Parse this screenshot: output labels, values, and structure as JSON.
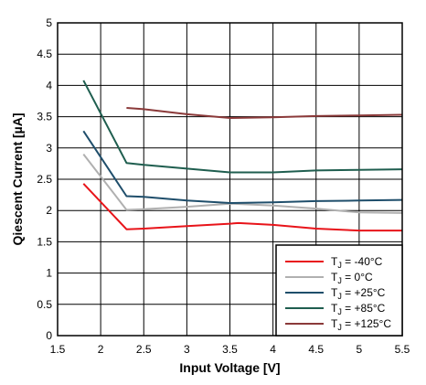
{
  "chart_data": {
    "type": "line",
    "xlabel": "Input Voltage [V]",
    "ylabel": "Qiescent Current [µA]",
    "xlim": [
      1.5,
      5.5
    ],
    "ylim": [
      0,
      5
    ],
    "xticks": [
      "1.5",
      "2",
      "2.5",
      "3",
      "3.5",
      "4",
      "4.5",
      "5",
      "5.5"
    ],
    "yticks": [
      "0",
      "0.5",
      "1",
      "1.5",
      "2",
      "2.5",
      "3",
      "3.5",
      "4",
      "4.5",
      "5"
    ],
    "grid": true,
    "legend_position": "bottom-right",
    "series": [
      {
        "name": "T_J = -40°C",
        "legend": {
          "pre": "T",
          "sub": "J",
          "post": " = -40°C"
        },
        "color": "#e8141a",
        "x": [
          1.8,
          2.3,
          2.5,
          3.0,
          3.5,
          3.6,
          4.0,
          4.5,
          5.0,
          5.5
        ],
        "y": [
          2.43,
          1.7,
          1.71,
          1.75,
          1.79,
          1.8,
          1.77,
          1.71,
          1.68,
          1.68
        ]
      },
      {
        "name": "T_J = 0°C",
        "legend": {
          "pre": "T",
          "sub": "J",
          "post": " = 0°C"
        },
        "color": "#b0b0b0",
        "x": [
          1.8,
          2.3,
          2.5,
          3.0,
          3.5,
          4.0,
          4.5,
          5.0,
          5.5
        ],
        "y": [
          2.9,
          2.01,
          2.02,
          2.06,
          2.11,
          2.08,
          2.03,
          1.97,
          1.96
        ]
      },
      {
        "name": "T_J = +25°C",
        "legend": {
          "pre": "T",
          "sub": "J",
          "post": " = +25°C"
        },
        "color": "#1f4e6b",
        "x": [
          1.8,
          2.3,
          2.5,
          3.0,
          3.5,
          4.0,
          4.5,
          5.0,
          5.5
        ],
        "y": [
          3.27,
          2.23,
          2.22,
          2.16,
          2.12,
          2.13,
          2.15,
          2.16,
          2.17
        ]
      },
      {
        "name": "T_J = +85°C",
        "legend": {
          "pre": "T",
          "sub": "J",
          "post": " = +85°C"
        },
        "color": "#1f5e4f",
        "x": [
          1.8,
          2.3,
          2.5,
          3.0,
          3.5,
          4.0,
          4.5,
          5.0,
          5.5
        ],
        "y": [
          4.08,
          2.76,
          2.73,
          2.67,
          2.61,
          2.61,
          2.64,
          2.65,
          2.66
        ]
      },
      {
        "name": "T_J = +125°C",
        "legend": {
          "pre": "T",
          "sub": "J",
          "post": " = +125°C"
        },
        "color": "#8b3a3a",
        "x": [
          2.3,
          2.5,
          3.0,
          3.5,
          4.0,
          4.5,
          5.0,
          5.5
        ],
        "y": [
          3.64,
          3.62,
          3.54,
          3.48,
          3.49,
          3.51,
          3.52,
          3.53
        ]
      }
    ]
  }
}
